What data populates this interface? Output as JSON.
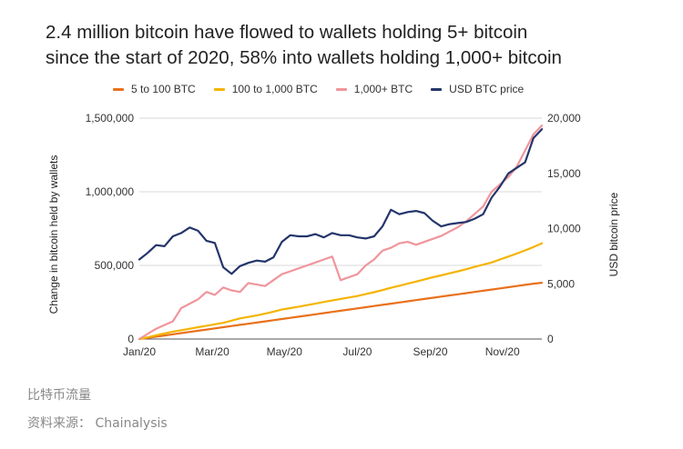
{
  "title_line1": "2.4 million bitcoin have flowed to wallets holding 5+ bitcoin",
  "title_line2": "since the start of 2020, 58% into wallets holding 1,000+ bitcoin",
  "footer": {
    "line1": "比特币流量",
    "line2": "资料来源：  Chainalysis"
  },
  "chart_data": {
    "type": "line",
    "title": "2.4 million bitcoin have flowed to wallets holding 5+ bitcoin since the start of 2020, 58% into wallets holding 1,000+ bitcoin",
    "ylabel": "Change in bitcoin held by wallets",
    "y2label": "USD bitcoin price",
    "xlabel": "",
    "xlim": [
      0,
      48
    ],
    "ylim": [
      0,
      1500000
    ],
    "y2lim": [
      0,
      20000
    ],
    "yticks": [
      "0",
      "500,000",
      "1,000,000",
      "1,500,000"
    ],
    "yticks_values": [
      0,
      500000,
      1000000,
      1500000
    ],
    "y2ticks": [
      "0",
      "5,000",
      "10,000",
      "15,000",
      "20,000"
    ],
    "y2ticks_values": [
      0,
      5000,
      10000,
      15000,
      20000
    ],
    "xticks": [
      "Jan/20",
      "Mar/20",
      "May/20",
      "Jul/20",
      "Sep/20",
      "Nov/20"
    ],
    "xticks_values": [
      0,
      8.7,
      17.3,
      26,
      34.7,
      43.3
    ],
    "x": [
      0,
      1,
      2,
      3,
      4,
      5,
      6,
      7,
      8,
      9,
      10,
      11,
      12,
      13,
      14,
      15,
      16,
      17,
      18,
      19,
      20,
      21,
      22,
      23,
      24,
      25,
      26,
      27,
      28,
      29,
      30,
      31,
      32,
      33,
      34,
      35,
      36,
      37,
      38,
      39,
      40,
      41,
      42,
      43,
      44,
      45,
      46,
      47,
      48
    ],
    "legend_position": "top",
    "grid": "horizontal",
    "series": [
      {
        "name": "5 to 100 BTC",
        "color": "#e8711c",
        "axis": "left",
        "values": [
          0,
          8000,
          16000,
          24000,
          32000,
          40000,
          48000,
          56000,
          64000,
          72000,
          80000,
          88000,
          96000,
          104000,
          112000,
          120000,
          128000,
          136000,
          144000,
          152000,
          160000,
          168000,
          176000,
          184000,
          192000,
          200000,
          208000,
          216000,
          224000,
          232000,
          240000,
          248000,
          256000,
          264000,
          272000,
          280000,
          288000,
          296000,
          304000,
          312000,
          320000,
          328000,
          336000,
          344000,
          352000,
          360000,
          368000,
          376000,
          382000
        ]
      },
      {
        "name": "100 to 1,000 BTC",
        "color": "#f4b400",
        "axis": "left",
        "values": [
          0,
          12000,
          25000,
          38000,
          50000,
          60000,
          70000,
          80000,
          90000,
          100000,
          110000,
          125000,
          140000,
          150000,
          160000,
          172000,
          186000,
          200000,
          210000,
          220000,
          230000,
          240000,
          252000,
          262000,
          272000,
          282000,
          292000,
          305000,
          318000,
          332000,
          348000,
          362000,
          376000,
          390000,
          405000,
          420000,
          432000,
          446000,
          460000,
          474000,
          490000,
          505000,
          520000,
          540000,
          560000,
          580000,
          602000,
          625000,
          650000
        ]
      },
      {
        "name": "1,000+ BTC",
        "color": "#f0959c",
        "axis": "left",
        "values": [
          0,
          35000,
          70000,
          95000,
          120000,
          210000,
          240000,
          270000,
          320000,
          300000,
          350000,
          330000,
          320000,
          380000,
          370000,
          360000,
          400000,
          440000,
          460000,
          480000,
          500000,
          520000,
          540000,
          560000,
          400000,
          420000,
          440000,
          500000,
          540000,
          600000,
          620000,
          650000,
          660000,
          640000,
          660000,
          680000,
          700000,
          730000,
          760000,
          800000,
          850000,
          900000,
          1000000,
          1050000,
          1100000,
          1170000,
          1280000,
          1390000,
          1450000
        ]
      },
      {
        "name": "USD BTC price",
        "color": "#24356b",
        "axis": "right",
        "values": [
          7200,
          7800,
          8500,
          8400,
          9300,
          9600,
          10100,
          9800,
          8900,
          8700,
          6500,
          5900,
          6600,
          6900,
          7100,
          7000,
          7400,
          8800,
          9400,
          9300,
          9300,
          9500,
          9200,
          9600,
          9400,
          9400,
          9200,
          9100,
          9300,
          10200,
          11700,
          11300,
          11500,
          11600,
          11400,
          10700,
          10200,
          10400,
          10500,
          10600,
          10900,
          11300,
          12800,
          13800,
          15000,
          15500,
          16000,
          18200,
          19000
        ]
      }
    ]
  }
}
